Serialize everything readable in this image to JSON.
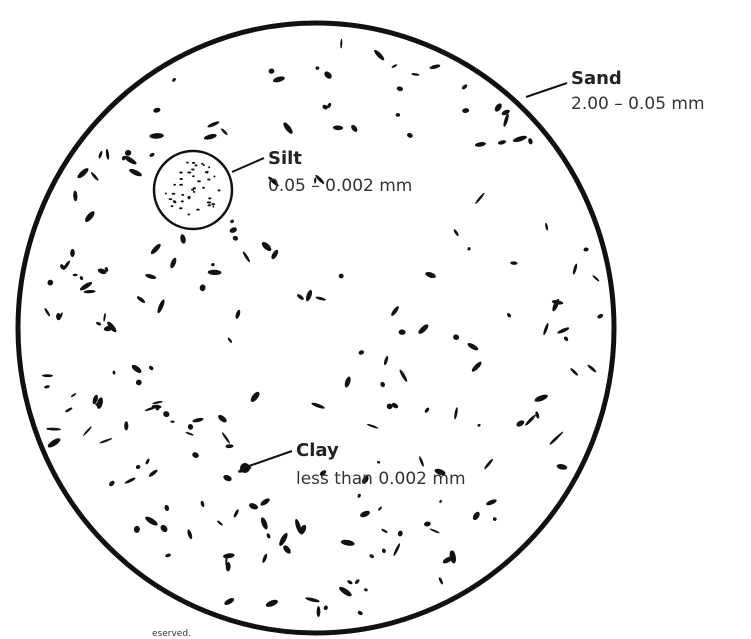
{
  "labels": {
    "sand": {
      "name": "Sand",
      "size": "2.00 – 0.05 mm"
    },
    "silt": {
      "name": "Silt",
      "size": "0.05 – 0.002 mm"
    },
    "clay": {
      "name": "Clay",
      "size": "less than 0.002 mm"
    }
  },
  "footer": "eserved."
}
